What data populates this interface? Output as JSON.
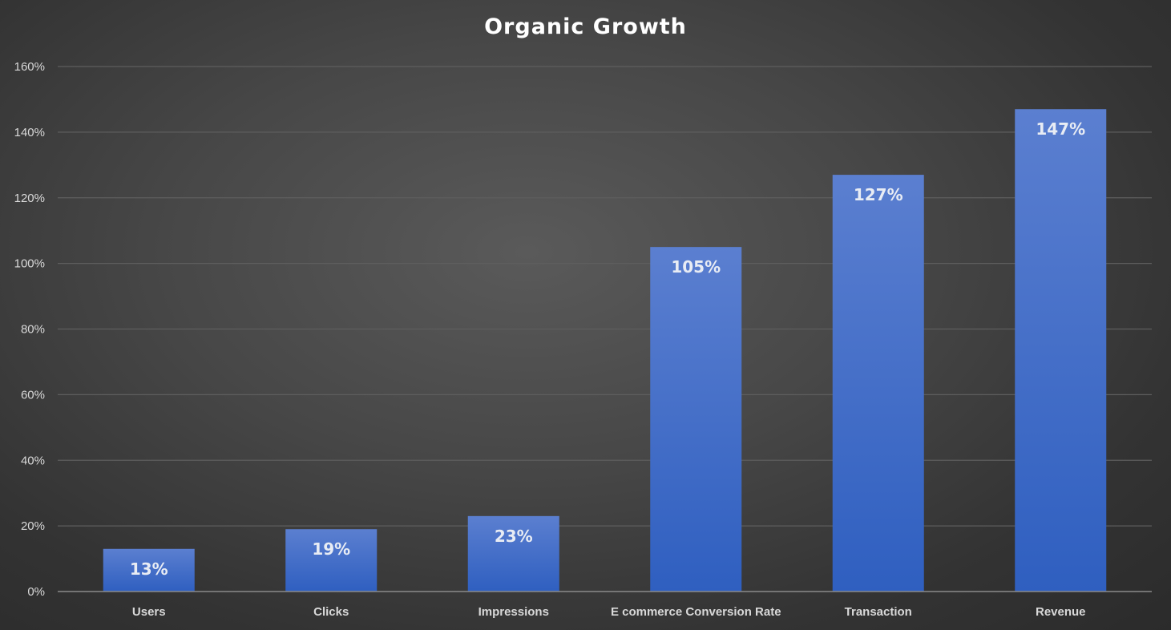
{
  "chart_data": {
    "type": "bar",
    "title": "Organic Growth",
    "categories": [
      "Users",
      "Clicks",
      "Impressions",
      "E commerce Conversion Rate",
      "Transaction",
      "Revenue"
    ],
    "values": [
      13,
      19,
      23,
      105,
      127,
      147
    ],
    "data_labels": [
      "13%",
      "19%",
      "23%",
      "105%",
      "127%",
      "147%"
    ],
    "ylim": [
      0,
      160
    ],
    "yticks": [
      0,
      20,
      40,
      60,
      80,
      100,
      120,
      140,
      160
    ],
    "ytick_labels": [
      "0%",
      "20%",
      "40%",
      "60%",
      "80%",
      "100%",
      "120%",
      "140%",
      "160%"
    ],
    "xlabel": "",
    "ylabel": "",
    "grid": true,
    "legend": "none",
    "colors": {
      "bar_top": "#5b7fd0",
      "bar_bottom": "#2f5fc0",
      "grid": "#5e5e5e",
      "axis": "#8a8a8a"
    }
  }
}
